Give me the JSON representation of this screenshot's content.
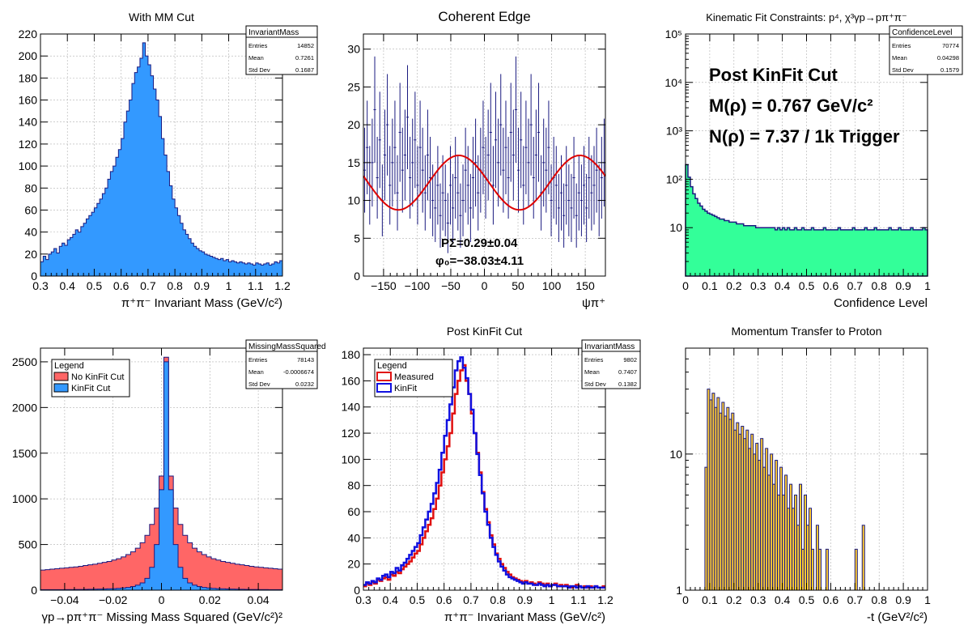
{
  "colors": {
    "axis": "#000000",
    "hist_line": "#1a1a80",
    "blue_fill": "#3399ff",
    "green_fill": "#33ff99",
    "gold_fill": "#ffcc33",
    "red_fill": "#ff6666",
    "red_line": "#e01010",
    "blue_line": "#1010e0",
    "fit_red": "#dd0000",
    "errbar": "#1a1a80",
    "grid": "#b0b0b0"
  },
  "chart_data": [
    {
      "type": "bar",
      "title": "With MM Cut",
      "xlabel": "π⁺π⁻ Invariant Mass (GeV/c²)",
      "ylabel": "",
      "xlim": [
        0.3,
        1.2
      ],
      "ylim": [
        0,
        220
      ],
      "grid": true,
      "x_ticks": [
        "0.3",
        "0.4",
        "0.5",
        "0.6",
        "0.7",
        "0.8",
        "0.9",
        "1",
        "1.1",
        "1.2"
      ],
      "y_ticks": [
        "0",
        "20",
        "40",
        "60",
        "80",
        "100",
        "120",
        "140",
        "160",
        "180",
        "200",
        "220"
      ],
      "stats": {
        "name": "InvariantMass",
        "rows": [
          [
            "Entries",
            "14852"
          ],
          [
            "Mean",
            "0.7261"
          ],
          [
            "Std Dev",
            "0.1687"
          ]
        ]
      },
      "series": [
        {
          "x_range": [
            0.3,
            1.2
          ],
          "values": [
            13,
            18,
            15,
            20,
            22,
            25,
            21,
            27,
            30,
            28,
            33,
            35,
            38,
            42,
            40,
            45,
            48,
            52,
            55,
            58,
            62,
            66,
            70,
            75,
            80,
            88,
            95,
            100,
            108,
            115,
            125,
            140,
            150,
            160,
            175,
            185,
            190,
            198,
            212,
            200,
            192,
            182,
            170,
            160,
            145,
            125,
            110,
            95,
            82,
            70,
            62,
            55,
            48,
            42,
            38,
            34,
            30,
            27,
            25,
            23,
            22,
            20,
            19,
            18,
            17,
            16,
            15,
            16,
            14,
            15,
            13,
            14,
            13,
            12,
            13,
            12,
            11,
            12,
            11,
            10,
            12,
            11,
            10,
            11,
            12,
            10,
            11,
            13,
            12,
            14
          ]
        }
      ]
    },
    {
      "type": "scatter",
      "title": "Coherent Edge",
      "xlabel": "ψπ⁺",
      "xlim": [
        -180,
        180
      ],
      "ylim": [
        0,
        32
      ],
      "grid": true,
      "x_ticks": [
        "−150",
        "−100",
        "−50",
        "0",
        "50",
        "100",
        "150"
      ],
      "y_ticks": [
        "0",
        "5",
        "10",
        "15",
        "20",
        "25",
        "30"
      ],
      "fit": {
        "offset": 12.35,
        "amplitude": 3.6,
        "phi0_deg": -38.03
      },
      "annotations": [
        "PΣ=0.29±0.04",
        "φ₀=−38.03±4.11"
      ],
      "series": [
        {
          "x_range": [
            -180,
            180
          ],
          "values": [
            14,
            17,
            12,
            15,
            22,
            13,
            18,
            10,
            16,
            20,
            12,
            15,
            17,
            11,
            19,
            14,
            16,
            21,
            13,
            15,
            18,
            12,
            17,
            14,
            11,
            16,
            13,
            10,
            9,
            12,
            8,
            11,
            10,
            7,
            12,
            9,
            13,
            11,
            8,
            10,
            14,
            12,
            9,
            13,
            15,
            11,
            14,
            17,
            13,
            16,
            19,
            12,
            18,
            15,
            20,
            14,
            17,
            13,
            19,
            16,
            22,
            14,
            18,
            12,
            17,
            15,
            20,
            13,
            16,
            19,
            11,
            15,
            14,
            17,
            10,
            13,
            12,
            9,
            11,
            8,
            12,
            10,
            9,
            13,
            8,
            11,
            10,
            12,
            9,
            13,
            11,
            12,
            14,
            10,
            13,
            15
          ]
        }
      ]
    },
    {
      "type": "bar",
      "title": "Kinematic Fit Constraints: p⁴, χ³γp→pπ⁺π⁻",
      "xlabel": "Confidence Level",
      "xlim": [
        0,
        1
      ],
      "ylim": [
        1,
        100000
      ],
      "yscale": "log",
      "grid": true,
      "x_ticks": [
        "0",
        "0.1",
        "0.2",
        "0.3",
        "0.4",
        "0.5",
        "0.6",
        "0.7",
        "0.8",
        "0.9",
        "1"
      ],
      "y_ticks": [
        "10",
        "10²",
        "10³",
        "10⁴",
        "10⁵"
      ],
      "stats": {
        "name": "ConfidenceLevel",
        "rows": [
          [
            "Entries",
            "70774"
          ],
          [
            "Mean",
            "0.04298"
          ],
          [
            "Std Dev",
            "0.1579"
          ]
        ]
      },
      "annotations": [
        "Post KinFit Cut",
        "M(ρ) = 0.767 GeV/c²",
        "N(ρ) = 7.37 / 1k Trigger"
      ],
      "series": [
        {
          "x_range": [
            0,
            1
          ],
          "values": [
            200,
            110,
            70,
            50,
            40,
            32,
            28,
            24,
            22,
            20,
            19,
            18,
            17,
            16,
            15,
            15,
            14,
            14,
            13,
            13,
            13,
            12,
            12,
            12,
            11,
            11,
            11,
            11,
            11,
            10,
            10,
            10,
            10,
            10,
            10,
            10,
            10,
            9,
            10,
            9,
            10,
            9,
            10,
            9,
            9,
            10,
            9,
            9,
            10,
            9,
            9,
            9,
            10,
            9,
            9,
            9,
            9,
            10,
            9,
            9,
            9,
            9,
            9,
            10,
            9,
            9,
            9,
            9,
            9,
            10,
            9,
            9,
            9,
            9,
            10,
            9,
            9,
            9,
            10,
            9,
            9,
            9,
            9,
            9,
            10,
            9,
            9,
            9,
            10,
            9,
            9,
            9,
            9,
            10,
            9,
            9,
            9,
            9,
            10,
            9
          ]
        }
      ]
    },
    {
      "type": "area",
      "title": "",
      "xlabel": "γp→pπ⁺π⁻ Missing Mass Squared (GeV/c²)²",
      "xlim": [
        -0.05,
        0.05
      ],
      "ylim": [
        0,
        2650
      ],
      "grid": true,
      "x_ticks": [
        "−0.04",
        "−0.02",
        "0",
        "0.02",
        "0.04"
      ],
      "y_ticks": [
        "0",
        "500",
        "1000",
        "1500",
        "2000",
        "2500"
      ],
      "legend": {
        "title": "Legend",
        "entries": [
          "No KinFit Cut",
          "KinFit Cut"
        ]
      },
      "stats": {
        "name": "MissingMassSquared",
        "rows": [
          [
            "Entries",
            "78143"
          ],
          [
            "Mean",
            "-0.0006674"
          ],
          [
            "Std Dev",
            "0.0232"
          ]
        ]
      },
      "series": [
        {
          "name": "No KinFit Cut",
          "x_range": [
            -0.05,
            0.05
          ],
          "values": [
            220,
            225,
            230,
            235,
            240,
            245,
            250,
            255,
            262,
            270,
            278,
            285,
            295,
            305,
            315,
            330,
            345,
            365,
            390,
            420,
            460,
            520,
            600,
            720,
            900,
            1250,
            2550,
            1250,
            900,
            720,
            600,
            520,
            460,
            420,
            390,
            365,
            345,
            330,
            315,
            305,
            295,
            285,
            278,
            270,
            262,
            255,
            250,
            245,
            240,
            235,
            230
          ]
        },
        {
          "name": "KinFit Cut",
          "x_range": [
            -0.05,
            0.05
          ],
          "values": [
            5,
            5,
            6,
            6,
            6,
            7,
            7,
            8,
            8,
            9,
            10,
            11,
            12,
            13,
            15,
            17,
            20,
            24,
            30,
            40,
            55,
            80,
            130,
            250,
            500,
            1100,
            2500,
            1100,
            500,
            250,
            130,
            80,
            55,
            40,
            30,
            24,
            20,
            17,
            15,
            13,
            12,
            11,
            10,
            9,
            8,
            8,
            7,
            7,
            6,
            6,
            5
          ]
        }
      ]
    },
    {
      "type": "line",
      "title": "Post KinFit Cut",
      "xlabel": "π⁺π⁻ Invariant Mass (GeV/c²)",
      "xlim": [
        0.3,
        1.2
      ],
      "ylim": [
        0,
        185
      ],
      "grid": true,
      "x_ticks": [
        "0.3",
        "0.4",
        "0.5",
        "0.6",
        "0.7",
        "0.8",
        "0.9",
        "1",
        "1.1",
        "1.2"
      ],
      "y_ticks": [
        "0",
        "20",
        "40",
        "60",
        "80",
        "100",
        "120",
        "140",
        "160",
        "180"
      ],
      "legend": {
        "title": "Legend",
        "entries": [
          "Measured",
          "KinFit"
        ]
      },
      "stats": {
        "name": "InvariantMass",
        "rows": [
          [
            "Entries",
            "9802"
          ],
          [
            "Mean",
            "0.7407"
          ],
          [
            "Std Dev",
            "0.1382"
          ]
        ]
      },
      "series": [
        {
          "name": "Measured",
          "x_range": [
            0.3,
            1.2
          ],
          "values": [
            3,
            5,
            4,
            6,
            5,
            8,
            7,
            9,
            10,
            8,
            12,
            11,
            14,
            13,
            16,
            18,
            20,
            22,
            25,
            28,
            30,
            35,
            40,
            45,
            50,
            55,
            62,
            70,
            80,
            90,
            100,
            110,
            120,
            135,
            150,
            160,
            168,
            172,
            160,
            150,
            135,
            120,
            105,
            90,
            75,
            62,
            52,
            42,
            35,
            28,
            24,
            20,
            17,
            14,
            12,
            10,
            9,
            8,
            7,
            6,
            7,
            5,
            6,
            5,
            4,
            6,
            5,
            4,
            5,
            3,
            4,
            5,
            3,
            4,
            3,
            4,
            3,
            2,
            3,
            4,
            3,
            2,
            3,
            2,
            3,
            2,
            3,
            2,
            2,
            3
          ]
        },
        {
          "name": "KinFit",
          "x_range": [
            0.3,
            1.2
          ],
          "values": [
            4,
            6,
            5,
            7,
            6,
            9,
            8,
            11,
            12,
            10,
            14,
            13,
            17,
            15,
            19,
            21,
            24,
            27,
            30,
            33,
            36,
            42,
            48,
            54,
            60,
            66,
            74,
            82,
            92,
            105,
            118,
            130,
            142,
            155,
            168,
            175,
            178,
            170,
            162,
            150,
            138,
            120,
            104,
            88,
            74,
            60,
            50,
            40,
            33,
            27,
            22,
            18,
            15,
            12,
            10,
            9,
            8,
            7,
            6,
            5,
            6,
            5,
            5,
            4,
            4,
            5,
            4,
            3,
            4,
            3,
            4,
            4,
            3,
            3,
            3,
            3,
            2,
            3,
            3,
            2,
            3,
            2,
            2,
            3,
            2,
            2,
            3,
            2,
            2,
            2
          ]
        }
      ]
    },
    {
      "type": "bar",
      "title": "Momentum Transfer to Proton",
      "xlabel": "-t (GeV²/c²)",
      "xlim": [
        0,
        1
      ],
      "ylim": [
        1,
        60
      ],
      "yscale": "log",
      "grid": true,
      "x_ticks": [
        "0",
        "0.1",
        "0.2",
        "0.3",
        "0.4",
        "0.5",
        "0.6",
        "0.7",
        "0.8",
        "0.9",
        "1"
      ],
      "y_ticks": [
        "1",
        "10"
      ],
      "series": [
        {
          "x_range": [
            0,
            1
          ],
          "values": [
            0,
            0,
            0,
            0,
            0,
            0,
            0,
            0,
            8,
            30,
            25,
            28,
            22,
            26,
            20,
            24,
            19,
            22,
            18,
            20,
            15,
            17,
            14,
            16,
            13,
            15,
            11,
            14,
            10,
            12,
            9,
            13,
            8,
            11,
            7,
            10,
            6,
            9,
            5,
            8,
            5,
            7,
            4,
            6,
            4,
            5,
            3,
            6,
            2,
            5,
            3,
            4,
            2,
            0,
            3,
            2,
            0,
            1,
            2,
            0,
            1,
            0,
            0,
            1,
            0,
            0,
            0,
            0,
            0,
            0,
            2,
            0,
            0,
            3,
            0,
            0,
            0,
            0,
            0,
            0,
            0,
            0,
            0,
            0,
            0,
            0,
            0,
            0,
            0,
            0,
            0,
            0,
            0,
            0,
            0,
            0,
            0,
            0,
            0,
            0
          ]
        }
      ]
    }
  ]
}
